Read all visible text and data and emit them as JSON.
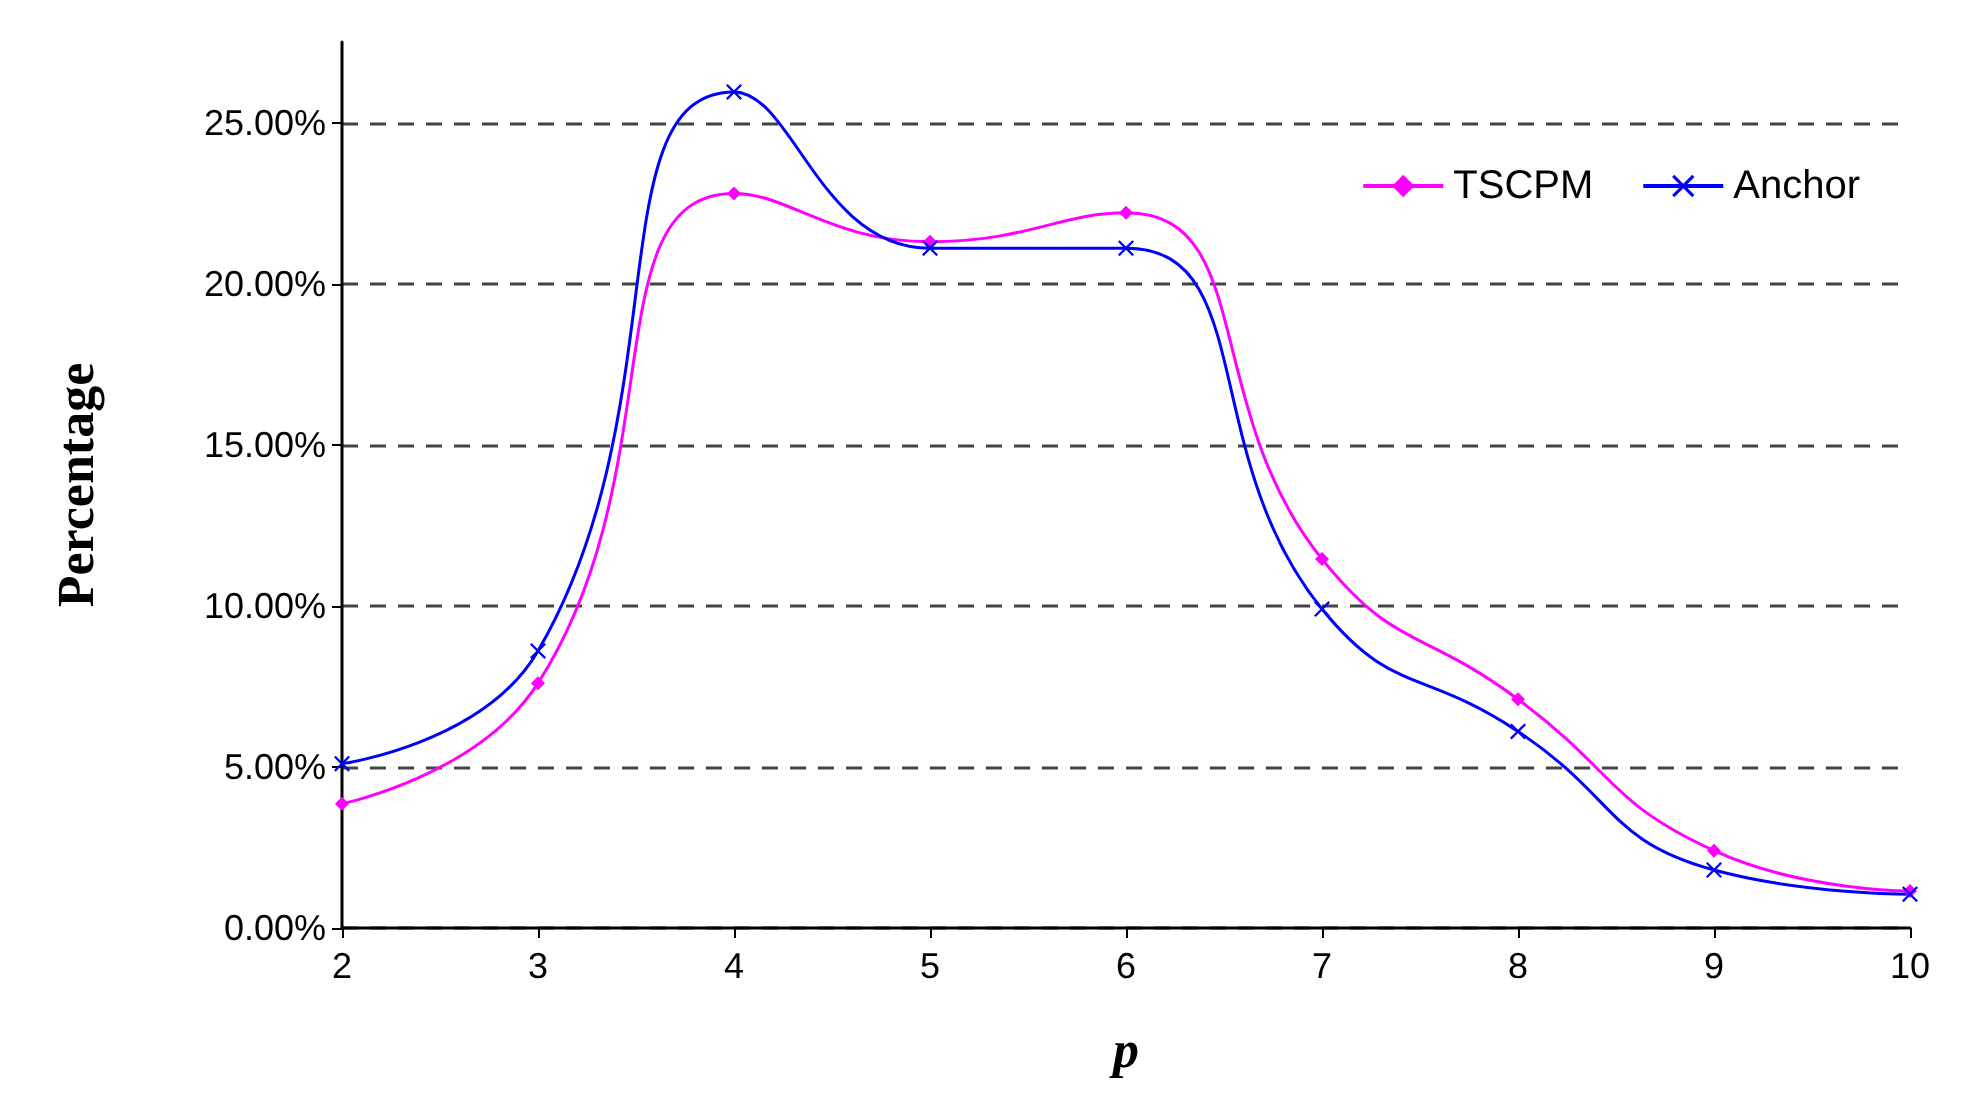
{
  "chart_data": {
    "type": "line",
    "xlabel": "p",
    "ylabel": "Percentage",
    "x": [
      2,
      3,
      4,
      5,
      6,
      7,
      8,
      9,
      10
    ],
    "series": [
      {
        "name": "TSCPM",
        "color": "#ff00ff",
        "marker": "diamond",
        "values": [
          3.86,
          7.6,
          22.8,
          21.3,
          22.2,
          11.45,
          7.1,
          2.4,
          1.15
        ]
      },
      {
        "name": "Anchor",
        "color": "#0000ff",
        "marker": "cross",
        "values": [
          5.1,
          8.6,
          25.95,
          21.1,
          21.1,
          9.9,
          6.1,
          1.8,
          1.05
        ]
      }
    ],
    "xlim": [
      2,
      10
    ],
    "xticks": [
      2,
      3,
      4,
      5,
      6,
      7,
      8,
      9,
      10
    ],
    "ylim": [
      0,
      27.5
    ],
    "yticks": [
      {
        "value": 0,
        "label": "0.00%"
      },
      {
        "value": 5,
        "label": "5.00%"
      },
      {
        "value": 10,
        "label": "10.00%"
      },
      {
        "value": 15,
        "label": "15.00%"
      },
      {
        "value": 20,
        "label": "20.00%"
      },
      {
        "value": 25,
        "label": "25.00%"
      }
    ],
    "grid": "y",
    "legend": "top right"
  }
}
